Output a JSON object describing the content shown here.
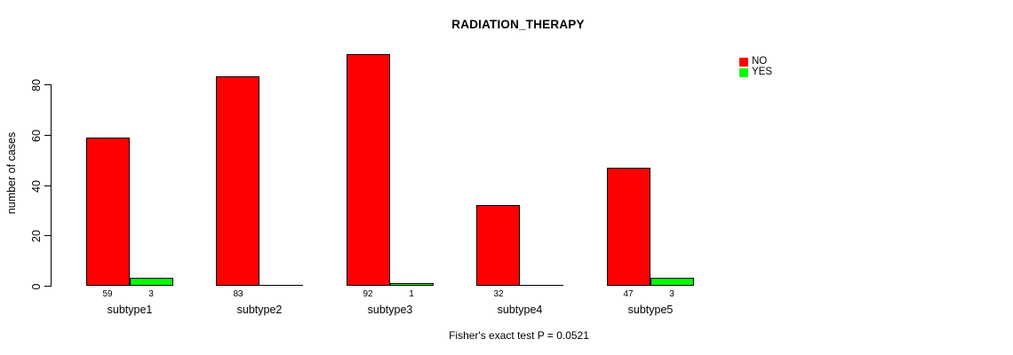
{
  "chart_data": {
    "type": "bar",
    "title": "RADIATION_THERAPY",
    "ylabel": "number of cases",
    "xlabel": "",
    "categories": [
      "subtype1",
      "subtype2",
      "subtype3",
      "subtype4",
      "subtype5"
    ],
    "series": [
      {
        "name": "NO",
        "color": "#ff0000",
        "values": [
          59,
          83,
          92,
          32,
          47
        ]
      },
      {
        "name": "YES",
        "color": "#00ff00",
        "values": [
          3,
          0,
          1,
          0,
          3
        ]
      }
    ],
    "yticks": [
      0,
      20,
      40,
      60,
      80
    ],
    "ylim": [
      0,
      95
    ],
    "grid": false,
    "legend_position": "top-right",
    "bar_value_labels_shown": true,
    "hide_zero_value_labels": true,
    "annotation": "Fisher's exact test P = 0.0521",
    "axis_color": "#000000",
    "background": "#ffffff"
  }
}
